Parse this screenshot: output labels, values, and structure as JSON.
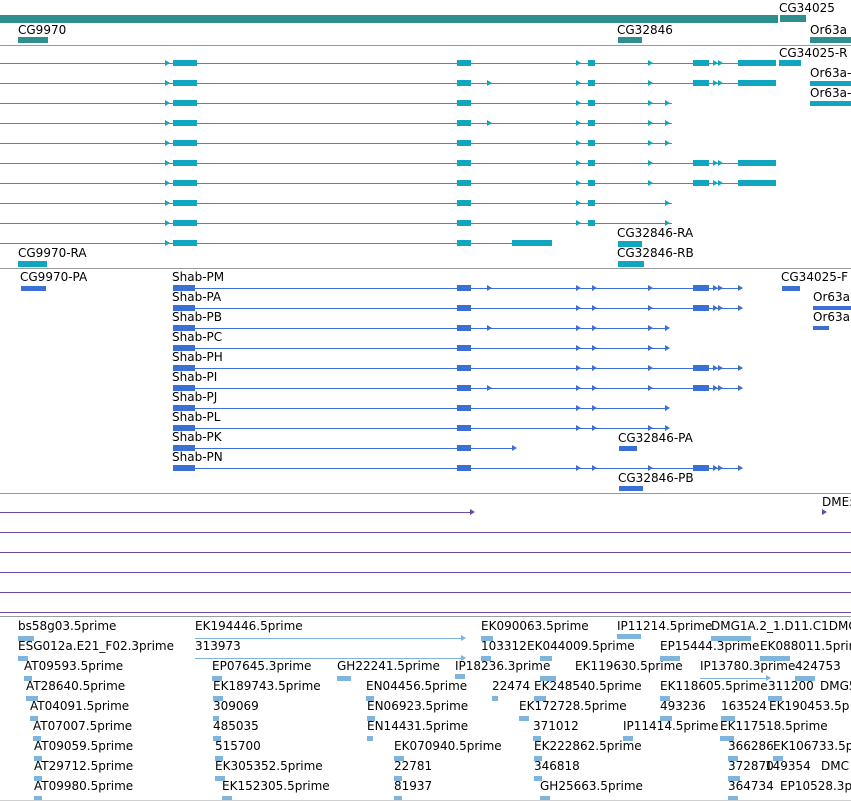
{
  "colors": {
    "gene": "#2f8f8f",
    "transcript": "#11a6bf",
    "protein": "#3c6fd6",
    "purple": "#6a4aa6",
    "est": "#7fb4dc"
  },
  "gene_track": {
    "labels": [
      "CG9970",
      "CG32846",
      "CG34025",
      "Or63a"
    ]
  },
  "transcript_track": {
    "labels": [
      "CG34025-R",
      "Or63a-",
      "Or63a-",
      "CG9970-RA",
      "CG32846-RA",
      "CG32846-RB"
    ]
  },
  "protein_track": {
    "labels": [
      "CG9970-PA",
      "CG34025-F",
      "Or63a",
      "Or63a",
      "Shab-PM",
      "Shab-PA",
      "Shab-PB",
      "Shab-PC",
      "Shab-PH",
      "Shab-PI",
      "Shab-PJ",
      "Shab-PL",
      "Shab-PK",
      "Shab-PN",
      "CG32846-PA",
      "CG32846-PB"
    ]
  },
  "purple_track": {
    "labels": [
      "DME:"
    ]
  },
  "est_track": {
    "labels": [
      "bs58g03.5prime",
      "EK194446.5prime",
      "EK090063.5prime",
      "IP11214.5prime",
      "DMG1A.2_1.D11.C1DMG",
      "ESG012a.E21_F02.3prime",
      "313973",
      "103312",
      "EK044009.5prime",
      "EP15444.3prime",
      "EK088011.5prime",
      "AT09593.5prime",
      "EP07645.3prime",
      "GH22241.5prime",
      "IP18236.3prime",
      "EK119630.5prime",
      "IP13780.3prime",
      "424753",
      "AT28640.5prime",
      "EK189743.5prime",
      "EN04456.5prime",
      "22474",
      "EK248540.5prime",
      "EK118605.5prime",
      "311200",
      "DMG5",
      "AT04091.5prime",
      "309069",
      "EN06923.5prime",
      "EK172728.5prime",
      "493236",
      "163524",
      "EK190453.5p",
      "AT07007.5prime",
      "485035",
      "EN14431.5prime",
      "371012",
      "IP11414.5prime",
      "EK117518.5prime",
      "AT09059.5prime",
      "515700",
      "EK070940.5prime",
      "EK222862.5prime",
      "366286",
      "EK106733.5p",
      "AT29712.5prime",
      "EK305352.5prime",
      "22781",
      "346818",
      "372870",
      "149354",
      "DMC",
      "AT09980.5prime",
      "EK152305.5prime",
      "81937",
      "GH25663.5prime",
      "364734",
      "EP10528.3p"
    ]
  }
}
